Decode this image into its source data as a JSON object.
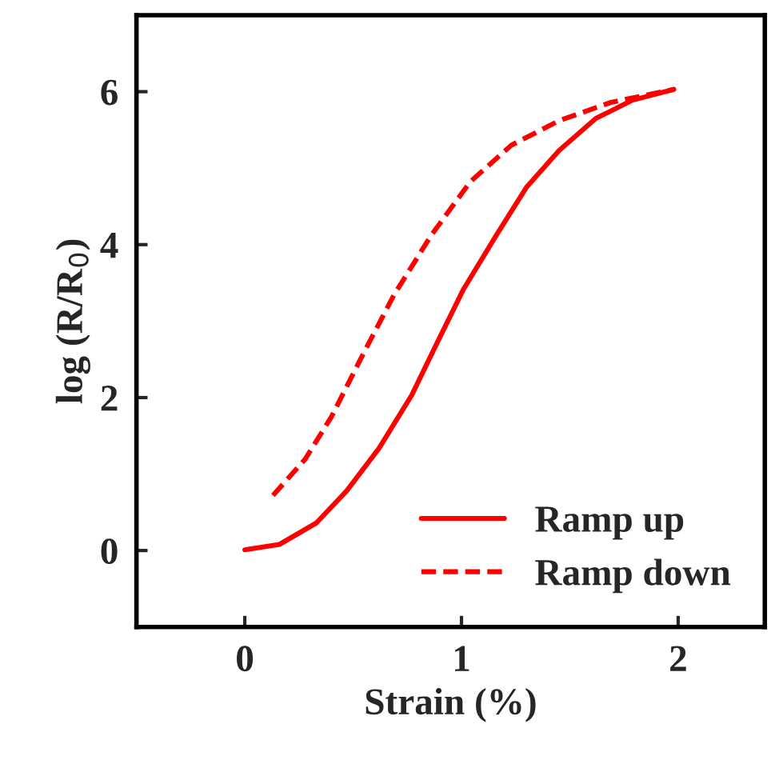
{
  "chart_data": {
    "type": "line",
    "xlabel": "Strain (%)",
    "ylabel": "log (R/R$_{0}$)",
    "xlim": [
      -0.5,
      2.4
    ],
    "ylim": [
      -1,
      7
    ],
    "xticks": [
      0,
      1,
      2
    ],
    "yticks": [
      0,
      2,
      4,
      6
    ],
    "grid": false,
    "legend": "bottom right",
    "marker": "none",
    "series": [
      {
        "name": "Ramp up",
        "color": "#ff0000",
        "line_style": "solid",
        "x": [
          0,
          0.16,
          0.33,
          0.47,
          0.62,
          0.77,
          0.89,
          1.01,
          1.16,
          1.3,
          1.45,
          1.62,
          1.79,
          1.98
        ],
        "values": [
          0.01,
          0.08,
          0.36,
          0.78,
          1.34,
          2.03,
          2.73,
          3.42,
          4.12,
          4.75,
          5.23,
          5.65,
          5.89,
          6.03
        ]
      },
      {
        "name": "Ramp down",
        "color": "#ff0000",
        "line_style": "dashed",
        "x": [
          0.13,
          0.28,
          0.4,
          0.55,
          0.69,
          0.86,
          1.04,
          1.23,
          1.45,
          1.69,
          1.98
        ],
        "values": [
          0.72,
          1.2,
          1.75,
          2.59,
          3.35,
          4.12,
          4.82,
          5.3,
          5.62,
          5.86,
          6.03
        ]
      }
    ]
  }
}
